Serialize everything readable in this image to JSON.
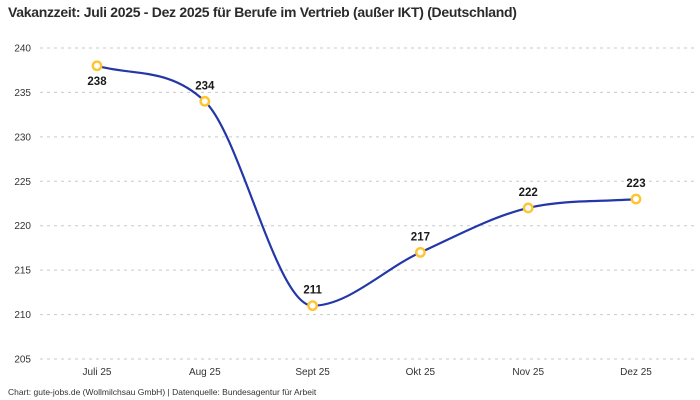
{
  "chart_data": {
    "type": "line",
    "title": "Vakanzzeit: Juli 2025 - Dez 2025 für Berufe im Vertrieb (außer IKT) (Deutschland)",
    "categories": [
      "Juli 25",
      "Aug 25",
      "Sept 25",
      "Okt 25",
      "Nov 25",
      "Dez 25"
    ],
    "values": [
      238,
      234,
      211,
      217,
      222,
      223
    ],
    "data_labels": [
      "238",
      "234",
      "211",
      "217",
      "222",
      "223"
    ],
    "ylim": [
      205,
      240
    ],
    "yticks": [
      205,
      210,
      215,
      220,
      225,
      230,
      235,
      240
    ],
    "xlabel": "",
    "ylabel": "",
    "grid": "horizontal-dashed",
    "legend_position": "none",
    "curve": "smooth-spline",
    "label_positions": [
      "below",
      "above",
      "above",
      "above",
      "above",
      "above"
    ],
    "footer": "Chart: gute-jobs.de (Wollmilchsau GmbH) | Datenquelle: Bundesagentur für Arbeit",
    "colors": {
      "line": "#2337a8",
      "marker_stroke": "#ffc42e",
      "marker_fill": "#ffffff",
      "grid": "#c9c9c9",
      "title_text": "#2b2b2b",
      "axis_text": "#333333",
      "data_label": "#1a1a1a",
      "background": "#ffffff"
    }
  }
}
